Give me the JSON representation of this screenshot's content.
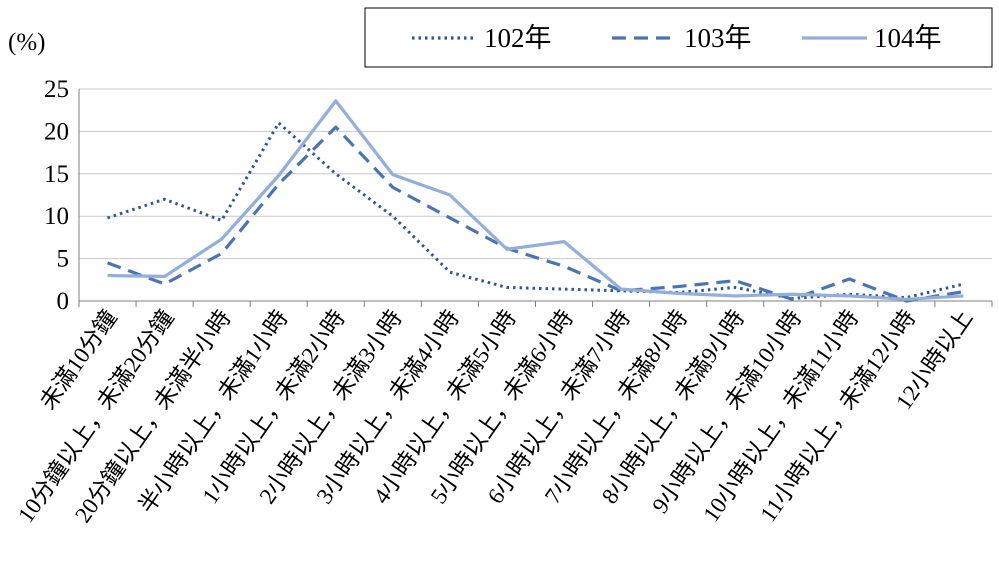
{
  "chart_data": {
    "type": "line",
    "unit_label": "(%)",
    "title": "",
    "xlabel": "",
    "ylabel": "",
    "ylim": [
      0,
      25
    ],
    "yticks": [
      0,
      5,
      10,
      15,
      20,
      25
    ],
    "grid": true,
    "legend_position": "top-right",
    "categories": [
      "未滿10分鐘",
      "10分鐘以上，未滿20分鐘",
      "20分鐘以上，未滿半小時",
      "半小時以上，未滿1小時",
      "1小時以上，未滿2小時",
      "2小時以上，未滿3小時",
      "3小時以上，未滿4小時",
      "4小時以上，未滿5小時",
      "5小時以上，未滿6小時",
      "6小時以上，未滿7小時",
      "7小時以上，未滿8小時",
      "8小時以上，未滿9小時",
      "9小時以上，未滿10小時",
      "10小時以上，未滿11小時",
      "11小時以上，未滿12小時",
      "12小時以上"
    ],
    "series": [
      {
        "name": "102年",
        "color": "#2f5597",
        "dash": "dotted",
        "values": [
          9.8,
          12.0,
          9.5,
          21.0,
          15.0,
          10.0,
          3.4,
          1.6,
          1.4,
          1.2,
          1.0,
          1.6,
          0.3,
          0.8,
          0.4,
          2.0
        ]
      },
      {
        "name": "103年",
        "color": "#4a74b4",
        "dash": "dashed",
        "values": [
          4.5,
          2.0,
          5.6,
          13.8,
          20.5,
          13.4,
          9.8,
          6.2,
          4.1,
          1.2,
          1.7,
          2.4,
          0.2,
          2.6,
          0.0,
          1.1
        ]
      },
      {
        "name": "104年",
        "color": "#93aedb",
        "dash": "solid",
        "values": [
          3.0,
          2.9,
          7.3,
          14.8,
          23.6,
          14.9,
          12.5,
          6.1,
          7.0,
          1.4,
          0.9,
          0.6,
          0.8,
          0.6,
          0.2,
          0.6
        ]
      }
    ]
  }
}
